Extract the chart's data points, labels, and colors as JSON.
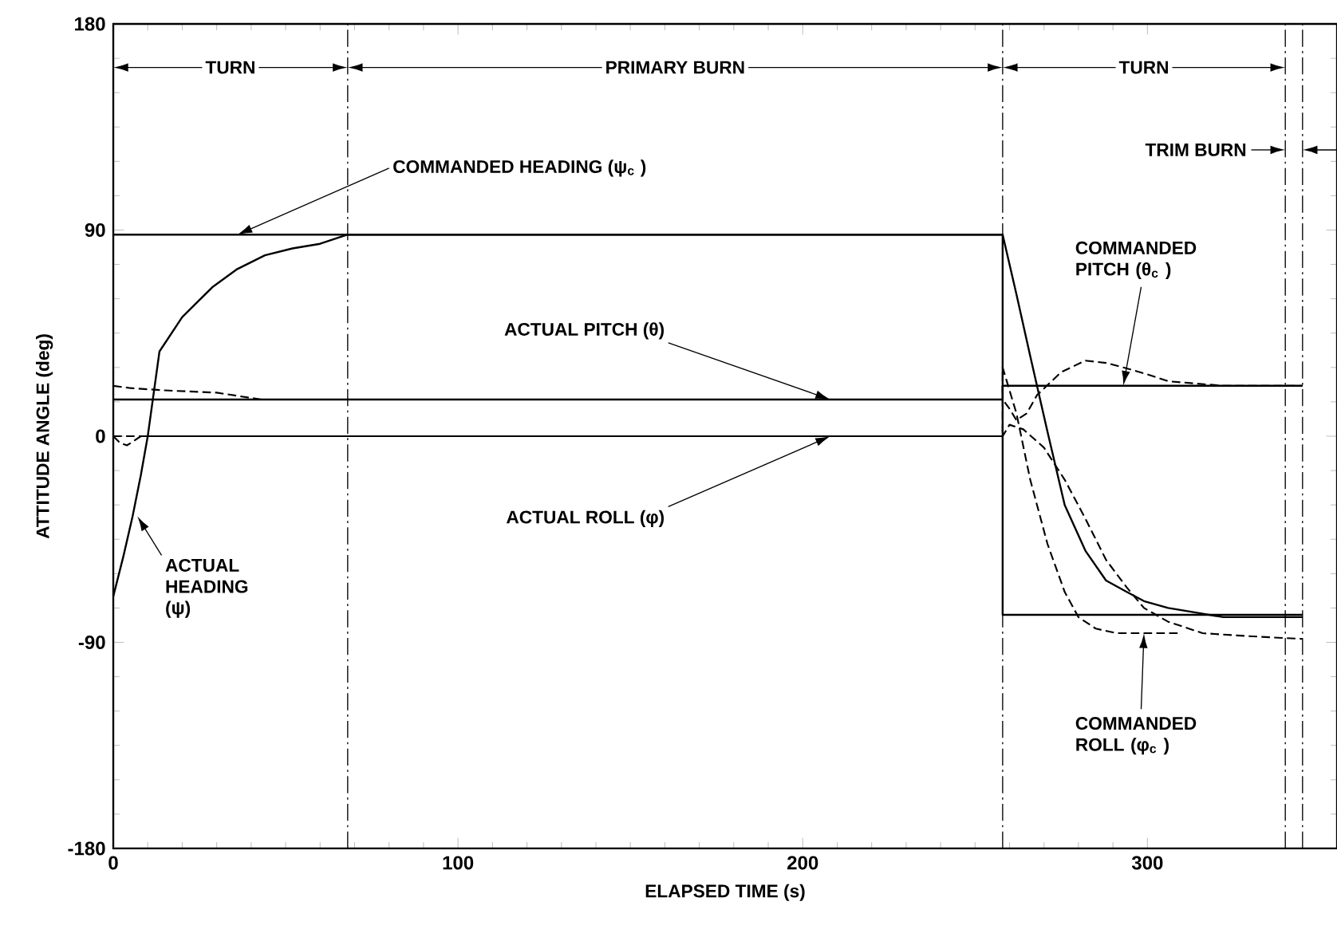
{
  "chart_data": {
    "type": "line",
    "xlabel": "ELAPSED TIME (s)",
    "ylabel": "ATTITUDE ANGLE (deg)",
    "xlim": [
      0,
      355
    ],
    "ylim": [
      -180,
      180
    ],
    "xticks": [
      0,
      100,
      200,
      300
    ],
    "yticks": [
      -180,
      -90,
      0,
      90,
      180
    ],
    "series": [
      {
        "color": "#000000",
        "line_style": "solid",
        "x": [
          0,
          258,
          258,
          345
        ],
        "values": [
          88,
          88,
          -78,
          -78
        ]
      },
      {
        "color": "#000000",
        "line_style": "solid",
        "x": [
          0,
          3,
          5.6,
          8,
          10,
          13.4,
          20,
          28.7,
          36,
          44,
          52,
          60,
          68,
          258,
          262,
          266,
          271,
          276,
          282,
          288,
          294,
          299,
          306,
          314,
          322,
          334,
          345
        ],
        "values": [
          -70,
          -52,
          -35,
          -17,
          0,
          37,
          52,
          65,
          73,
          79,
          82,
          84,
          88,
          88,
          62,
          35,
          2,
          -30,
          -50,
          -63,
          -68,
          -72,
          -75,
          -77,
          -79,
          -79,
          -79
        ]
      },
      {
        "color": "#000000",
        "line_style": "dashed",
        "x": [
          0,
          5,
          15,
          30,
          43,
          60,
          258,
          260,
          262,
          265,
          268,
          275,
          282,
          288,
          293,
          300,
          306,
          314,
          322,
          334,
          345
        ],
        "values": [
          22,
          21,
          20,
          19,
          16,
          16,
          16,
          12,
          7,
          10,
          18,
          28,
          33,
          32,
          30,
          27,
          24,
          23,
          22,
          22,
          22
        ]
      },
      {
        "color": "#000000",
        "line_style": "solid",
        "x": [
          0,
          258,
          258,
          345
        ],
        "values": [
          16,
          16,
          22,
          22
        ]
      },
      {
        "color": "#000000",
        "line_style": "dashed",
        "x": [
          0,
          2,
          4,
          6,
          8,
          258,
          260,
          264,
          270,
          276,
          282,
          288,
          294,
          299,
          306,
          316,
          326,
          338,
          345
        ],
        "values": [
          0,
          -3,
          -4,
          -2,
          0,
          0,
          5,
          3,
          -5,
          -19,
          -36,
          -54,
          -66,
          -75,
          -81,
          -86,
          -87,
          -88,
          -88.5
        ]
      },
      {
        "color": "#000000",
        "line_style": "dashed",
        "x": [
          0,
          258,
          258,
          262,
          266,
          271,
          276,
          280,
          285,
          291,
          300,
          310
        ],
        "values": [
          0,
          0,
          30,
          10,
          -19,
          -47,
          -68,
          -79,
          -84,
          -86,
          -86,
          -86
        ]
      }
    ],
    "annotations": [
      {
        "text": "COMMANDED HEADING (ψ$_{c}$ )",
        "x": 36,
        "y": 88
      },
      {
        "text": "ACTUAL PITCH (θ)",
        "x": 208,
        "y": 16
      },
      {
        "text": "ACTUAL ROLL (φ)",
        "x": 208,
        "y": 0
      },
      {
        "text": "ACTUAL HEADING (ψ)",
        "x": 7,
        "y": -35
      },
      {
        "text": "COMMANDED PITCH (θ$_{c}$ )",
        "x": 293,
        "y": 22
      },
      {
        "text": "COMMANDED ROLL (φ$_{c}$ )",
        "x": 299,
        "y": -86
      },
      "TURN",
      "PRIMARY BURN",
      "TURN",
      "TRIM BURN"
    ],
    "ref_lines": [
      {
        "axis": "x",
        "value": 68,
        "line_style": "dashed"
      },
      {
        "axis": "x",
        "value": 258,
        "line_style": "dashed"
      },
      {
        "axis": "x",
        "value": 340,
        "line_style": "dashed"
      },
      {
        "axis": "x",
        "value": 345,
        "line_style": "dashed"
      }
    ]
  }
}
